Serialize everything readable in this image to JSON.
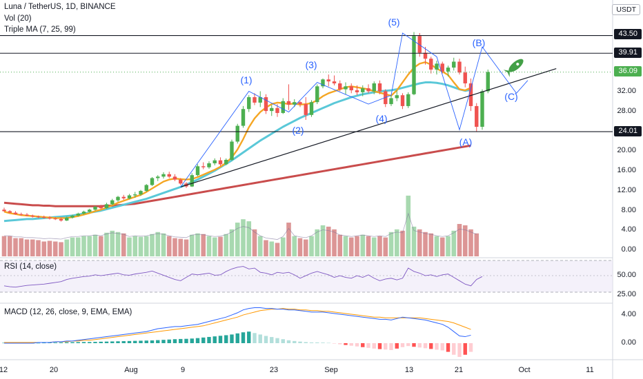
{
  "header": {
    "symbol_line": "Luna / TetherUS, 1D, BINANCE",
    "vol_line": "Vol (20)",
    "ma_line": "Triple MA (7, 25, 99)",
    "rsi_line": "RSI (14, close)",
    "macd_line": "MACD (12, 26, close, 9, EMA, EMA)"
  },
  "currency_badge": "USDT",
  "price_axis": {
    "labels": [
      "32.00",
      "28.00",
      "24.00",
      "20.00",
      "16.00",
      "12.00",
      "8.00",
      "4.00",
      "0.00"
    ],
    "tags": [
      {
        "text": "43.50",
        "style": "dark"
      },
      {
        "text": "39.91",
        "style": "dark"
      },
      {
        "text": "36.09",
        "style": "green"
      },
      {
        "text": "24.01",
        "style": "dark"
      }
    ]
  },
  "rsi_axis": {
    "labels": [
      "50.00",
      "25.00"
    ]
  },
  "macd_axis": {
    "labels": [
      "4.00",
      "0.00"
    ]
  },
  "time_axis": {
    "labels": [
      "12",
      "20",
      "Aug",
      "9",
      "23",
      "Sep",
      "13",
      "21",
      "Oct",
      "11"
    ]
  },
  "wave_labels": [
    "(1)",
    "(2)",
    "(3)",
    "(4)",
    "(5)",
    "(A)",
    "(B)",
    "(C)"
  ],
  "colors": {
    "up": "#26a69a",
    "up_candle": "#4caf50",
    "down": "#ef5350",
    "ma7": "#f5a623",
    "ma25": "#5ac8d8",
    "ma99": "#c94c4c",
    "projection": "#2962ff",
    "rsi": "#7e57c2",
    "macd": "#2962ff",
    "signal": "#ff9800"
  },
  "chart_data": {
    "type": "candlestick",
    "y_range": [
      0,
      46
    ],
    "horizontal_levels": [
      43.5,
      39.91,
      24.01
    ],
    "last_price": 36.09,
    "candles": [
      {
        "o": 8.2,
        "h": 8.6,
        "l": 7.8,
        "c": 7.9
      },
      {
        "o": 7.9,
        "h": 8.1,
        "l": 7.5,
        "c": 7.6
      },
      {
        "o": 7.6,
        "h": 7.9,
        "l": 7.2,
        "c": 7.3
      },
      {
        "o": 7.3,
        "h": 7.6,
        "l": 7.0,
        "c": 7.2
      },
      {
        "o": 7.2,
        "h": 7.5,
        "l": 6.9,
        "c": 7.0
      },
      {
        "o": 7.0,
        "h": 7.2,
        "l": 6.6,
        "c": 6.8
      },
      {
        "o": 6.8,
        "h": 7.0,
        "l": 6.5,
        "c": 6.7
      },
      {
        "o": 6.7,
        "h": 7.0,
        "l": 6.4,
        "c": 6.6
      },
      {
        "o": 6.6,
        "h": 6.9,
        "l": 6.2,
        "c": 6.4
      },
      {
        "o": 6.4,
        "h": 6.7,
        "l": 6.1,
        "c": 6.3
      },
      {
        "o": 6.3,
        "h": 6.6,
        "l": 5.8,
        "c": 6.0
      },
      {
        "o": 6.0,
        "h": 6.8,
        "l": 5.9,
        "c": 6.6
      },
      {
        "o": 6.6,
        "h": 7.2,
        "l": 6.4,
        "c": 7.0
      },
      {
        "o": 7.0,
        "h": 7.6,
        "l": 6.8,
        "c": 7.4
      },
      {
        "o": 7.4,
        "h": 8.0,
        "l": 7.2,
        "c": 7.8
      },
      {
        "o": 7.8,
        "h": 8.4,
        "l": 7.6,
        "c": 8.2
      },
      {
        "o": 8.2,
        "h": 9.0,
        "l": 8.0,
        "c": 8.8
      },
      {
        "o": 8.8,
        "h": 9.2,
        "l": 8.3,
        "c": 8.5
      },
      {
        "o": 8.5,
        "h": 9.6,
        "l": 8.4,
        "c": 9.3
      },
      {
        "o": 9.3,
        "h": 10.4,
        "l": 9.1,
        "c": 10.1
      },
      {
        "o": 10.1,
        "h": 11.0,
        "l": 9.8,
        "c": 10.8
      },
      {
        "o": 10.8,
        "h": 11.2,
        "l": 10.2,
        "c": 10.5
      },
      {
        "o": 10.5,
        "h": 11.4,
        "l": 10.3,
        "c": 11.1
      },
      {
        "o": 11.1,
        "h": 11.8,
        "l": 10.6,
        "c": 11.3
      },
      {
        "o": 11.3,
        "h": 12.2,
        "l": 11.0,
        "c": 12.0
      },
      {
        "o": 12.0,
        "h": 13.4,
        "l": 11.8,
        "c": 13.2
      },
      {
        "o": 13.2,
        "h": 14.8,
        "l": 13.0,
        "c": 14.6
      },
      {
        "o": 14.6,
        "h": 15.2,
        "l": 14.0,
        "c": 14.9
      },
      {
        "o": 14.9,
        "h": 15.8,
        "l": 14.5,
        "c": 15.4
      },
      {
        "o": 15.4,
        "h": 15.9,
        "l": 14.6,
        "c": 14.9
      },
      {
        "o": 14.9,
        "h": 15.4,
        "l": 14.0,
        "c": 14.3
      },
      {
        "o": 14.3,
        "h": 14.6,
        "l": 13.2,
        "c": 13.5
      },
      {
        "o": 13.5,
        "h": 13.8,
        "l": 12.6,
        "c": 12.9
      },
      {
        "o": 12.9,
        "h": 15.6,
        "l": 12.8,
        "c": 15.2
      },
      {
        "o": 15.2,
        "h": 17.4,
        "l": 15.0,
        "c": 17.0
      },
      {
        "o": 17.0,
        "h": 17.8,
        "l": 16.4,
        "c": 16.8
      },
      {
        "o": 16.8,
        "h": 18.0,
        "l": 16.5,
        "c": 17.6
      },
      {
        "o": 17.6,
        "h": 18.6,
        "l": 17.2,
        "c": 18.2
      },
      {
        "o": 18.2,
        "h": 18.8,
        "l": 17.0,
        "c": 17.4
      },
      {
        "o": 17.4,
        "h": 18.6,
        "l": 17.2,
        "c": 18.3
      },
      {
        "o": 18.3,
        "h": 22.4,
        "l": 18.1,
        "c": 22.0
      },
      {
        "o": 22.0,
        "h": 25.6,
        "l": 21.6,
        "c": 25.2
      },
      {
        "o": 25.2,
        "h": 29.2,
        "l": 24.8,
        "c": 28.6
      },
      {
        "o": 28.6,
        "h": 31.4,
        "l": 28.0,
        "c": 31.0
      },
      {
        "o": 31.0,
        "h": 31.8,
        "l": 29.4,
        "c": 29.9
      },
      {
        "o": 29.9,
        "h": 32.2,
        "l": 29.0,
        "c": 31.0
      },
      {
        "o": 31.0,
        "h": 31.6,
        "l": 27.6,
        "c": 28.2
      },
      {
        "o": 28.2,
        "h": 29.4,
        "l": 27.2,
        "c": 28.8
      },
      {
        "o": 28.8,
        "h": 29.6,
        "l": 27.0,
        "c": 27.8
      },
      {
        "o": 27.8,
        "h": 30.8,
        "l": 27.6,
        "c": 30.2
      },
      {
        "o": 30.2,
        "h": 33.6,
        "l": 28.4,
        "c": 29.5
      },
      {
        "o": 29.5,
        "h": 30.6,
        "l": 29.0,
        "c": 30.0
      },
      {
        "o": 30.0,
        "h": 30.2,
        "l": 29.0,
        "c": 29.6
      },
      {
        "o": 29.6,
        "h": 31.0,
        "l": 26.4,
        "c": 27.4
      },
      {
        "o": 27.4,
        "h": 30.4,
        "l": 27.0,
        "c": 30.0
      },
      {
        "o": 30.0,
        "h": 33.6,
        "l": 29.6,
        "c": 33.2
      },
      {
        "o": 33.2,
        "h": 34.8,
        "l": 32.8,
        "c": 34.6
      },
      {
        "o": 34.6,
        "h": 35.6,
        "l": 33.2,
        "c": 34.2
      },
      {
        "o": 34.2,
        "h": 35.4,
        "l": 33.4,
        "c": 33.8
      },
      {
        "o": 33.8,
        "h": 34.4,
        "l": 32.2,
        "c": 32.6
      },
      {
        "o": 32.6,
        "h": 34.0,
        "l": 31.6,
        "c": 33.2
      },
      {
        "o": 33.2,
        "h": 33.8,
        "l": 31.8,
        "c": 32.4
      },
      {
        "o": 32.4,
        "h": 33.4,
        "l": 31.4,
        "c": 32.0
      },
      {
        "o": 32.0,
        "h": 33.4,
        "l": 31.2,
        "c": 32.8
      },
      {
        "o": 32.8,
        "h": 33.6,
        "l": 31.8,
        "c": 32.2
      },
      {
        "o": 32.2,
        "h": 34.2,
        "l": 31.6,
        "c": 33.8
      },
      {
        "o": 33.8,
        "h": 34.4,
        "l": 31.6,
        "c": 32.2
      },
      {
        "o": 32.2,
        "h": 32.6,
        "l": 29.0,
        "c": 29.6
      },
      {
        "o": 29.6,
        "h": 31.4,
        "l": 29.2,
        "c": 30.8
      },
      {
        "o": 30.8,
        "h": 32.4,
        "l": 30.2,
        "c": 31.4
      },
      {
        "o": 31.4,
        "h": 31.8,
        "l": 28.6,
        "c": 29.2
      },
      {
        "o": 29.2,
        "h": 32.0,
        "l": 28.8,
        "c": 31.6
      },
      {
        "o": 31.6,
        "h": 44.2,
        "l": 31.4,
        "c": 43.4
      },
      {
        "o": 43.4,
        "h": 44.0,
        "l": 39.2,
        "c": 40.0
      },
      {
        "o": 40.0,
        "h": 41.2,
        "l": 37.6,
        "c": 38.8
      },
      {
        "o": 38.8,
        "h": 39.2,
        "l": 35.8,
        "c": 36.6
      },
      {
        "o": 36.6,
        "h": 38.4,
        "l": 35.6,
        "c": 37.8
      },
      {
        "o": 37.8,
        "h": 38.2,
        "l": 35.8,
        "c": 36.2
      },
      {
        "o": 36.2,
        "h": 37.4,
        "l": 35.2,
        "c": 37.0
      },
      {
        "o": 37.0,
        "h": 39.0,
        "l": 36.4,
        "c": 38.2
      },
      {
        "o": 38.2,
        "h": 38.8,
        "l": 35.6,
        "c": 36.0
      },
      {
        "o": 36.0,
        "h": 37.2,
        "l": 33.0,
        "c": 33.8
      },
      {
        "o": 33.8,
        "h": 34.8,
        "l": 28.2,
        "c": 29.2
      },
      {
        "o": 29.2,
        "h": 29.8,
        "l": 24.0,
        "c": 25.0
      },
      {
        "o": 25.0,
        "h": 32.6,
        "l": 24.4,
        "c": 32.2
      },
      {
        "o": 32.2,
        "h": 36.6,
        "l": 31.8,
        "c": 36.1
      }
    ],
    "ma7_y": [
      7.8,
      7.5,
      7.3,
      7.1,
      7.0,
      6.9,
      6.8,
      6.7,
      6.6,
      6.5,
      6.5,
      6.5,
      6.7,
      6.9,
      7.2,
      7.5,
      7.9,
      8.2,
      8.6,
      9.1,
      9.6,
      10.0,
      10.4,
      10.8,
      11.2,
      11.8,
      12.5,
      13.2,
      13.9,
      14.3,
      14.5,
      14.4,
      14.3,
      14.4,
      14.8,
      15.3,
      15.8,
      16.3,
      16.9,
      17.7,
      18.8,
      20.4,
      22.5,
      24.9,
      26.7,
      28.0,
      28.9,
      29.6,
      29.9,
      29.8,
      29.6,
      29.7,
      29.5,
      29.6,
      29.8,
      30.4,
      31.2,
      31.8,
      32.2,
      32.6,
      33.0,
      33.2,
      33.0,
      32.8,
      32.6,
      32.2,
      31.9,
      31.6,
      31.3,
      32.4,
      34.0,
      35.6,
      37.0,
      37.8,
      38.1,
      37.6,
      36.8,
      36.2,
      35.5,
      34.0,
      32.6,
      32.4,
      32.9
    ],
    "ma25_y": [
      5.9,
      6.0,
      6.1,
      6.2,
      6.3,
      6.3,
      6.4,
      6.5,
      6.6,
      6.7,
      6.8,
      6.9,
      7.0,
      7.2,
      7.4,
      7.6,
      7.8,
      8.0,
      8.3,
      8.6,
      8.9,
      9.2,
      9.5,
      9.8,
      10.1,
      10.4,
      10.8,
      11.2,
      11.6,
      12.0,
      12.4,
      12.8,
      13.3,
      13.8,
      14.3,
      14.9,
      15.5,
      16.1,
      16.8,
      17.5,
      18.2,
      19.0,
      19.8,
      20.6,
      21.4,
      22.2,
      22.9,
      23.6,
      24.3,
      25.0,
      25.6,
      26.2,
      26.8,
      27.3,
      27.8,
      28.3,
      28.8,
      29.3,
      29.8,
      30.2,
      30.6,
      31.0,
      31.3,
      31.6,
      31.8,
      32.0,
      32.2,
      32.3,
      32.4,
      32.6,
      32.9,
      33.2,
      33.5,
      33.8,
      34.0,
      34.0,
      33.9,
      33.7,
      33.4,
      33.0,
      32.6,
      32.3,
      32.5
    ],
    "ma99_y": [
      9.6,
      9.5,
      9.4,
      9.3,
      9.2,
      9.1,
      9.1,
      9.0,
      9.0,
      8.9,
      8.9,
      8.9,
      8.9,
      8.9,
      8.9,
      8.9,
      8.9,
      8.9,
      9.0,
      9.0,
      9.1,
      9.2,
      9.3,
      9.4,
      9.6,
      9.8,
      10.0,
      10.2,
      10.4,
      10.6,
      10.8,
      11.0,
      11.2,
      11.4,
      11.6,
      11.8,
      12.0,
      12.2,
      12.4,
      12.6,
      12.8,
      13.0,
      13.2,
      13.4,
      13.6,
      13.8,
      14.0,
      14.2,
      14.4,
      14.6,
      14.8,
      15.0,
      15.2,
      15.4,
      15.6,
      15.8,
      16.0,
      16.2,
      16.4,
      16.6,
      16.8,
      17.0,
      17.2,
      17.4,
      17.6,
      17.8,
      18.0,
      18.2,
      18.4,
      18.6,
      18.8,
      19.0,
      19.2,
      19.4,
      19.6,
      19.8,
      20.0,
      20.2,
      20.4,
      20.6,
      20.8,
      21.0,
      21.2
    ]
  }
}
